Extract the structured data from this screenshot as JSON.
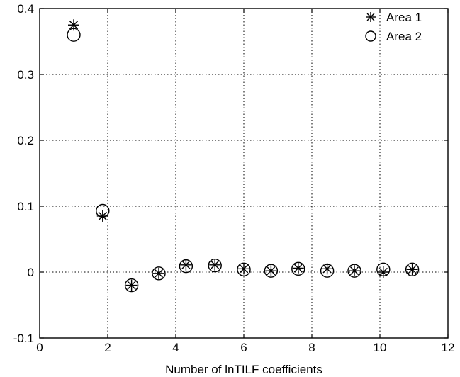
{
  "chart_data": {
    "type": "scatter",
    "title": "",
    "xlabel": "Number of lnTILF coefficients",
    "ylabel": "",
    "xlim": [
      0,
      12
    ],
    "ylim": [
      -0.1,
      0.4
    ],
    "xticks": [
      0,
      2,
      4,
      6,
      8,
      10,
      12
    ],
    "yticks": [
      -0.1,
      0,
      0.1,
      0.2,
      0.3,
      0.4
    ],
    "xtick_labels": [
      "0",
      "2",
      "4",
      "6",
      "8",
      "10",
      "12"
    ],
    "ytick_labels": [
      "-0.1",
      "0",
      "0.1",
      "0.2",
      "0.3",
      "0.4"
    ],
    "grid": true,
    "legend_position": "top-right",
    "series": [
      {
        "name": "Area 1",
        "marker": "star",
        "x": [
          1,
          1.85,
          2.7,
          3.5,
          4.3,
          5.15,
          6.0,
          6.8,
          7.6,
          8.45,
          9.25,
          10.1,
          10.95
        ],
        "y": [
          0.375,
          0.085,
          -0.02,
          -0.002,
          0.011,
          0.011,
          0.005,
          0.002,
          0.006,
          0.005,
          0.002,
          0.0,
          0.004
        ]
      },
      {
        "name": "Area 2",
        "marker": "circle",
        "x": [
          1,
          1.85,
          2.7,
          3.5,
          4.3,
          5.15,
          6.0,
          6.8,
          7.6,
          8.45,
          9.25,
          10.1,
          10.95
        ],
        "y": [
          0.36,
          0.093,
          -0.02,
          -0.002,
          0.009,
          0.01,
          0.004,
          0.002,
          0.005,
          0.002,
          0.002,
          0.004,
          0.004
        ]
      }
    ]
  }
}
